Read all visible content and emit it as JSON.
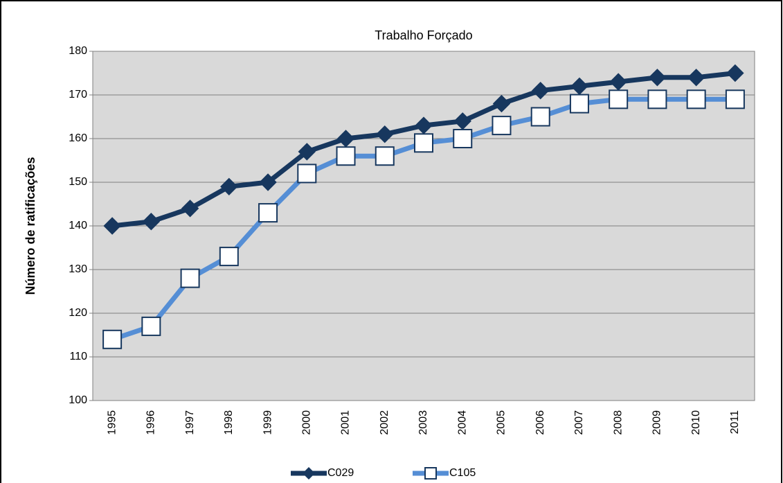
{
  "chart_data": {
    "type": "line",
    "title": "Trabalho Forçado",
    "y_label": "Número de ratificações",
    "categories": [
      "1995",
      "1996",
      "1997",
      "1998",
      "1999",
      "2000",
      "2001",
      "2002",
      "2003",
      "2004",
      "2005",
      "2006",
      "2007",
      "2008",
      "2009",
      "2010",
      "2011"
    ],
    "series": [
      {
        "name": "C029",
        "color": "#17375e",
        "marker": "diamond",
        "values": [
          140,
          141,
          144,
          149,
          150,
          157,
          160,
          161,
          163,
          164,
          168,
          171,
          172,
          173,
          174,
          174,
          175
        ]
      },
      {
        "name": "C105",
        "color": "#558ed5",
        "marker": "square",
        "values": [
          114,
          117,
          128,
          133,
          143,
          152,
          156,
          156,
          159,
          160,
          163,
          165,
          168,
          169,
          169,
          169,
          169
        ]
      }
    ],
    "ylim": [
      100,
      180
    ],
    "yticks": [
      100,
      110,
      120,
      130,
      140,
      150,
      160,
      170,
      180
    ],
    "grid": true,
    "legend": "bottom"
  }
}
